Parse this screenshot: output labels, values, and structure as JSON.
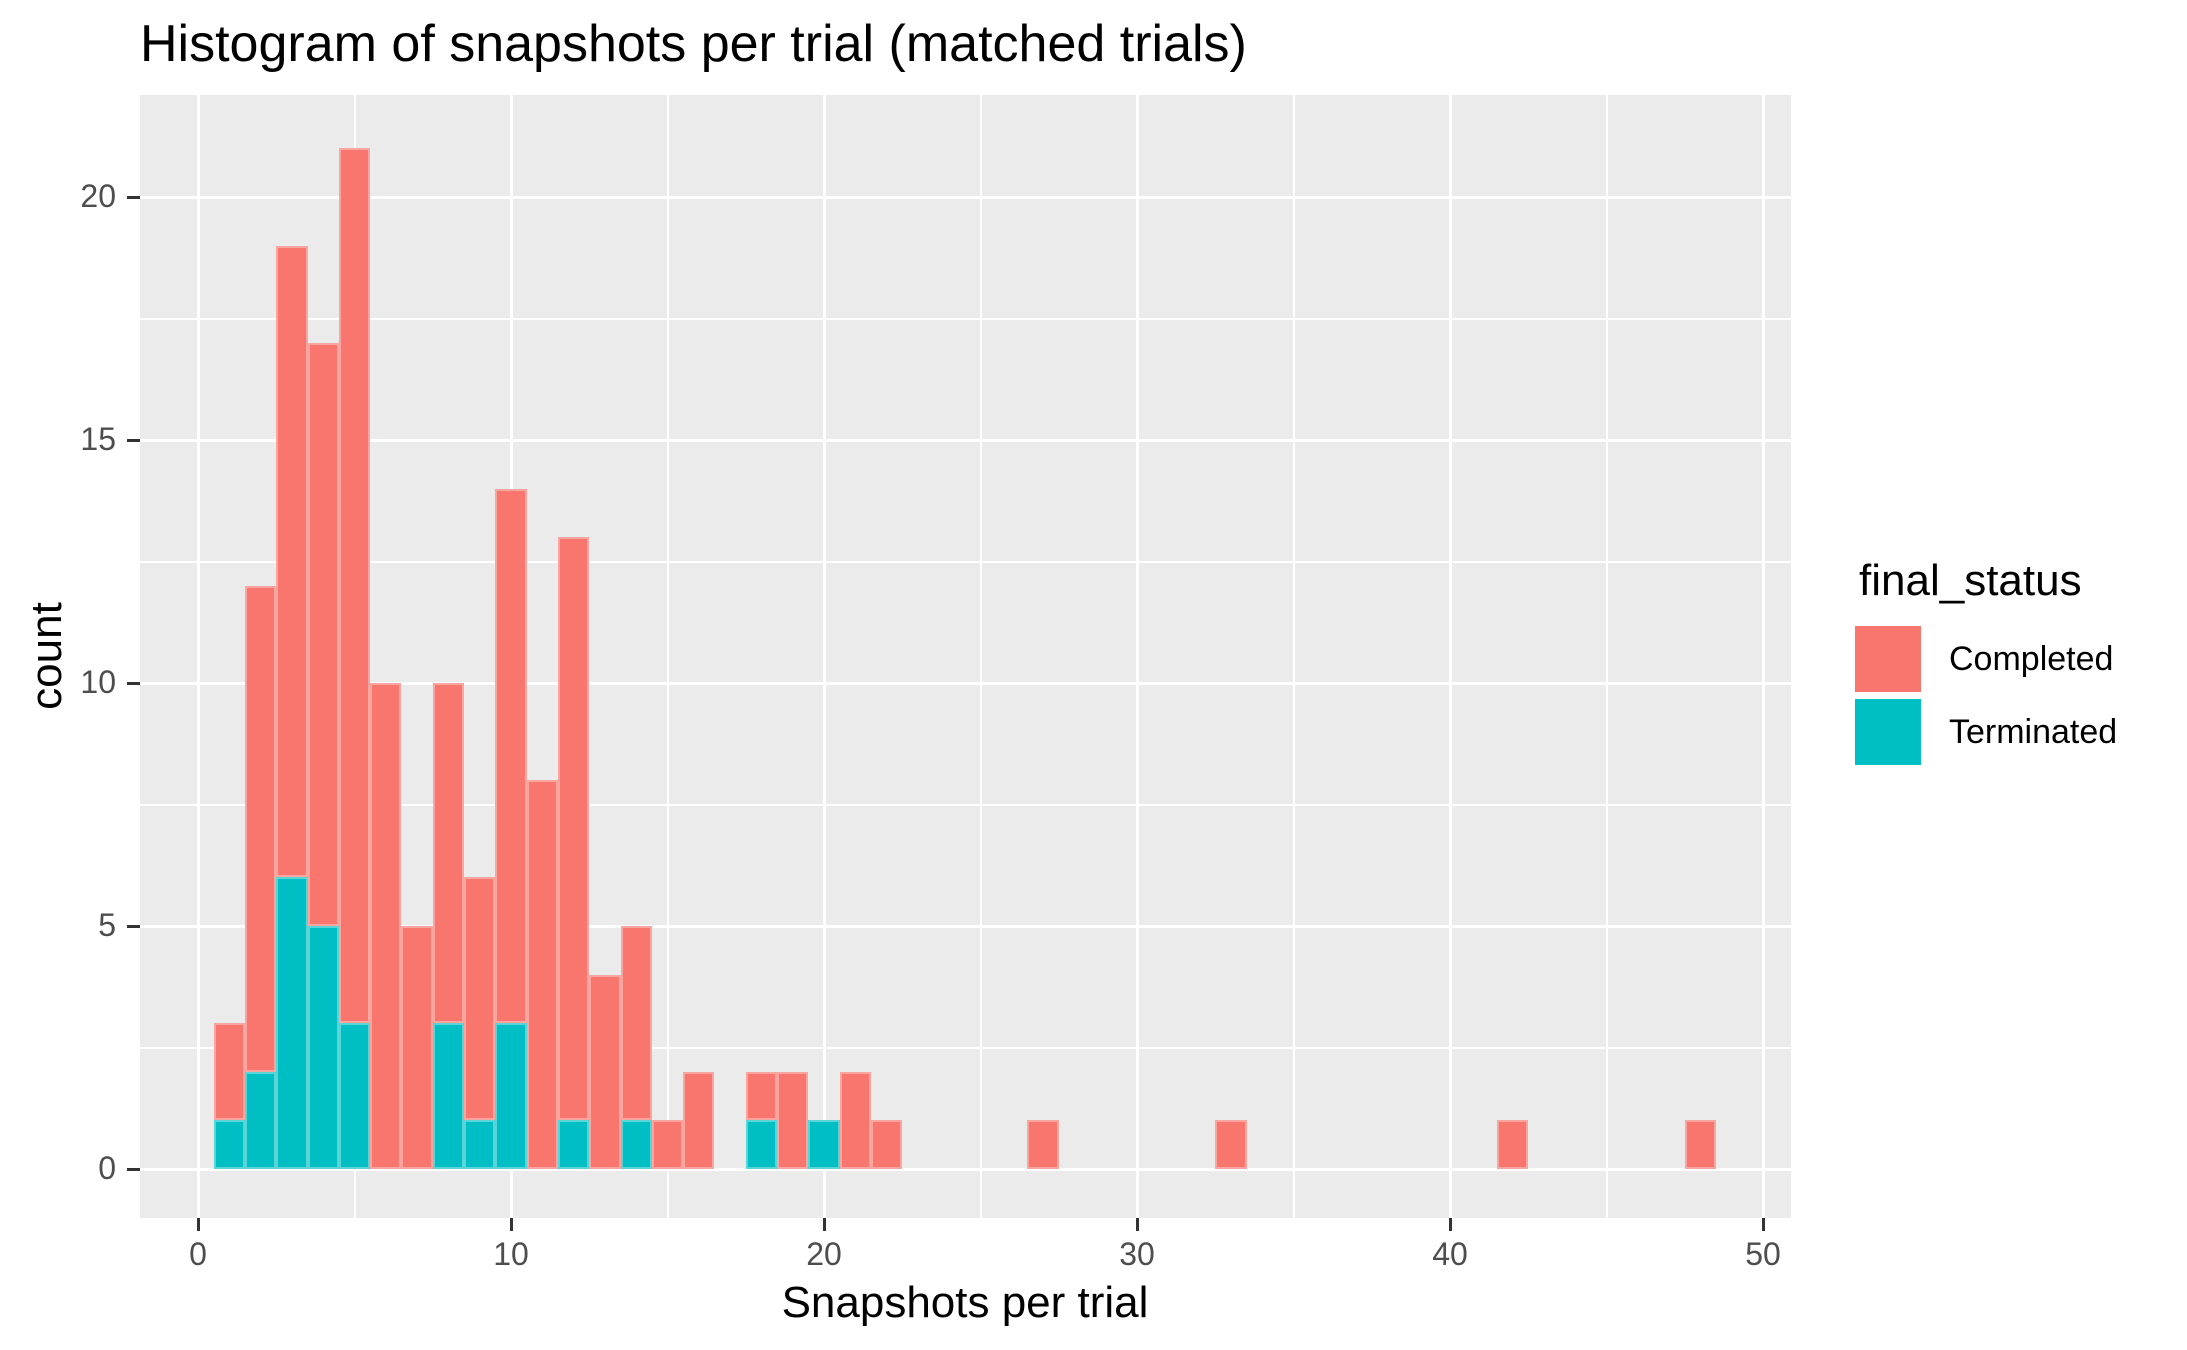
{
  "title": "Histogram of snapshots per trial (matched trials)",
  "x_axis": {
    "label": "Snapshots per trial",
    "ticks": [
      "0",
      "10",
      "20",
      "30",
      "40",
      "50"
    ],
    "tick_values": [
      0,
      10,
      20,
      30,
      40,
      50
    ]
  },
  "y_axis": {
    "label": "count",
    "ticks": [
      "0",
      "5",
      "10",
      "15",
      "20"
    ],
    "tick_values": [
      0,
      5,
      10,
      15,
      20
    ]
  },
  "legend": {
    "title": "final_status",
    "entries": [
      {
        "label": "Completed",
        "color": "#F8766D"
      },
      {
        "label": "Terminated",
        "color": "#00BFC4"
      }
    ]
  },
  "colors": {
    "completed": "#F8766D",
    "terminated": "#00BFC4",
    "panel_bg": "#EBEBEB",
    "grid": "#FFFFFF",
    "tick_text": "#4D4D4D",
    "tick_mark": "#333333",
    "title_text": "#000000"
  },
  "chart_data": {
    "type": "bar",
    "subtype": "stacked-histogram",
    "title": "Histogram of snapshots per trial (matched trials)",
    "xlabel": "Snapshots per trial",
    "ylabel": "count",
    "binwidth": 1,
    "xlim": [
      -1.9,
      50.9
    ],
    "ylim": [
      -1.05,
      22.05
    ],
    "grid": true,
    "legend_position": "right",
    "series_names": [
      "Completed",
      "Terminated"
    ],
    "bins": [
      {
        "x": 1,
        "completed": 2,
        "terminated": 1
      },
      {
        "x": 2,
        "completed": 10,
        "terminated": 2
      },
      {
        "x": 3,
        "completed": 13,
        "terminated": 6
      },
      {
        "x": 4,
        "completed": 12,
        "terminated": 5
      },
      {
        "x": 5,
        "completed": 18,
        "terminated": 3
      },
      {
        "x": 6,
        "completed": 10,
        "terminated": 0
      },
      {
        "x": 7,
        "completed": 5,
        "terminated": 0
      },
      {
        "x": 8,
        "completed": 7,
        "terminated": 3
      },
      {
        "x": 9,
        "completed": 5,
        "terminated": 1
      },
      {
        "x": 10,
        "completed": 11,
        "terminated": 3
      },
      {
        "x": 11,
        "completed": 8,
        "terminated": 0
      },
      {
        "x": 12,
        "completed": 12,
        "terminated": 1
      },
      {
        "x": 13,
        "completed": 4,
        "terminated": 0
      },
      {
        "x": 14,
        "completed": 4,
        "terminated": 1
      },
      {
        "x": 15,
        "completed": 1,
        "terminated": 0
      },
      {
        "x": 16,
        "completed": 2,
        "terminated": 0
      },
      {
        "x": 18,
        "completed": 1,
        "terminated": 1
      },
      {
        "x": 19,
        "completed": 2,
        "terminated": 0
      },
      {
        "x": 20,
        "completed": 0,
        "terminated": 1
      },
      {
        "x": 21,
        "completed": 2,
        "terminated": 0
      },
      {
        "x": 22,
        "completed": 1,
        "terminated": 0
      },
      {
        "x": 27,
        "completed": 1,
        "terminated": 0
      },
      {
        "x": 33,
        "completed": 1,
        "terminated": 0
      },
      {
        "x": 42,
        "completed": 1,
        "terminated": 0
      },
      {
        "x": 48,
        "completed": 1,
        "terminated": 0
      }
    ]
  }
}
